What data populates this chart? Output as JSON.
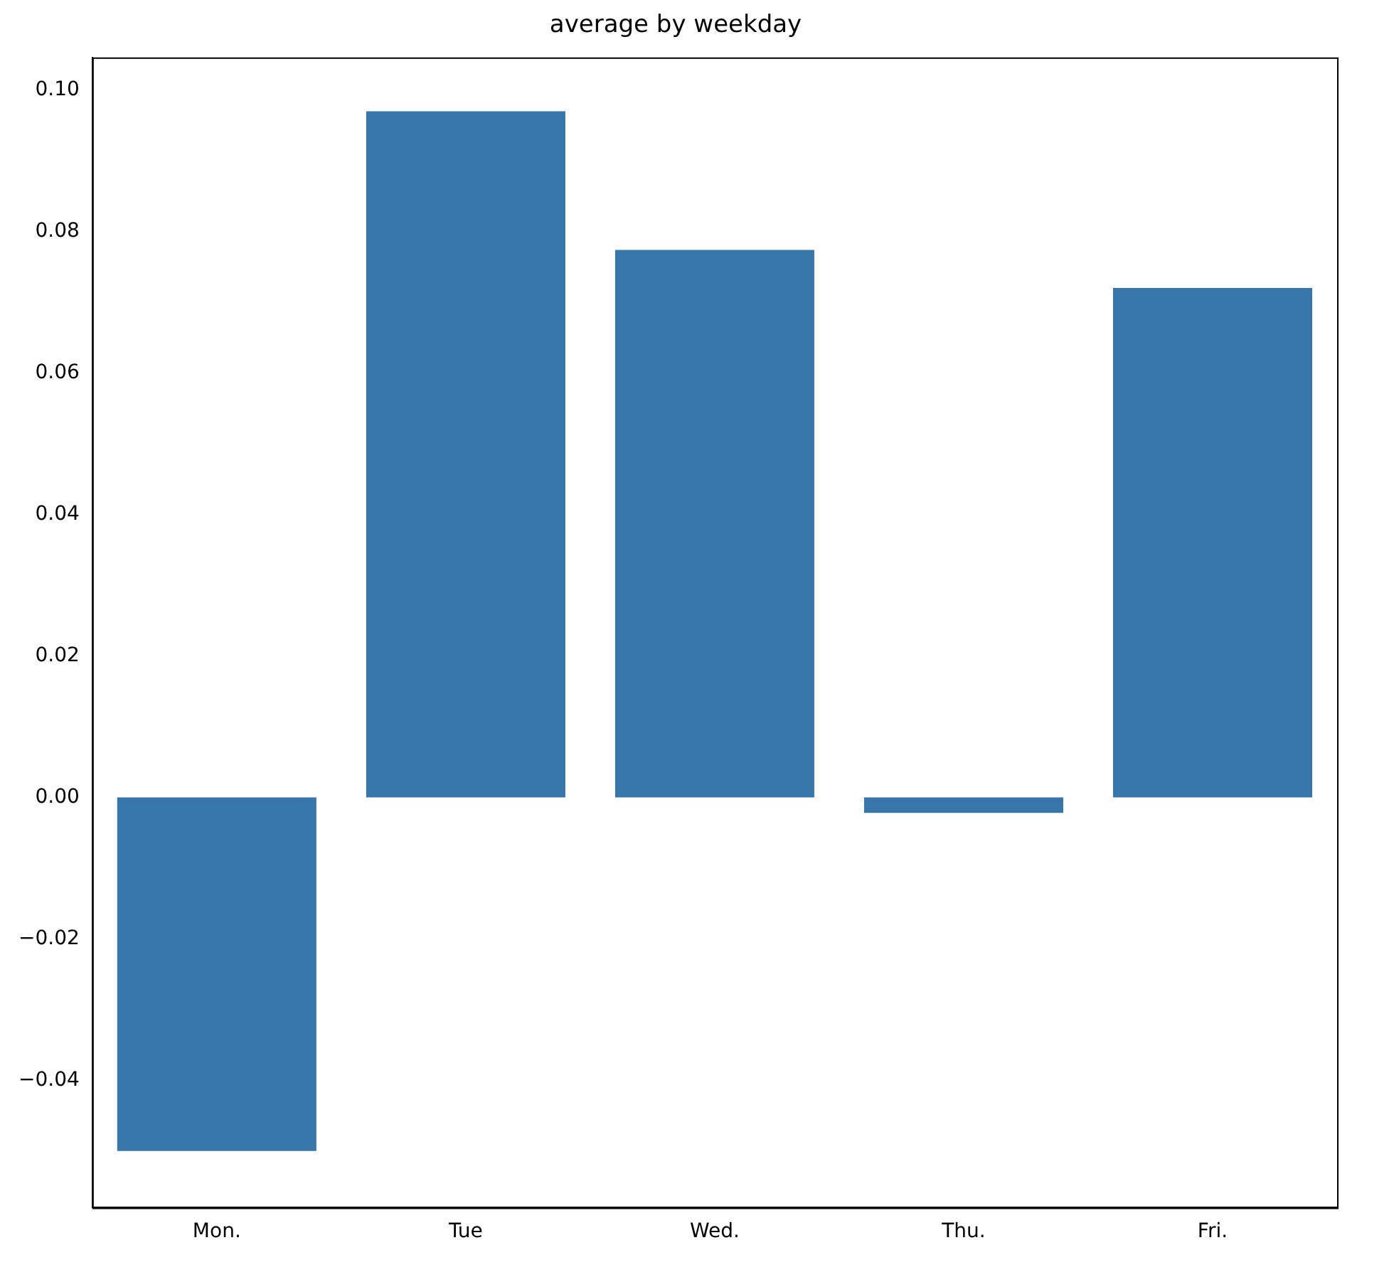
{
  "chart_data": {
    "type": "bar",
    "title": "average by weekday",
    "categories": [
      "Mon.",
      "Tue",
      "Wed.",
      "Thu.",
      "Fri."
    ],
    "values": [
      -0.05,
      0.097,
      0.0774,
      -0.0022,
      0.072
    ],
    "color": "#3776ab",
    "ylim": [
      -0.058,
      0.1046
    ],
    "yticks": [
      {
        "value": -0.04,
        "label": "−0.04"
      },
      {
        "value": -0.02,
        "label": "−0.02"
      },
      {
        "value": 0,
        "label": "0.00"
      },
      {
        "value": 0.02,
        "label": "0.02"
      },
      {
        "value": 0.04,
        "label": "0.04"
      },
      {
        "value": 0.06,
        "label": "0.06"
      },
      {
        "value": 0.08,
        "label": "0.08"
      },
      {
        "value": 0.1,
        "label": "0.10"
      }
    ],
    "grid": false
  }
}
